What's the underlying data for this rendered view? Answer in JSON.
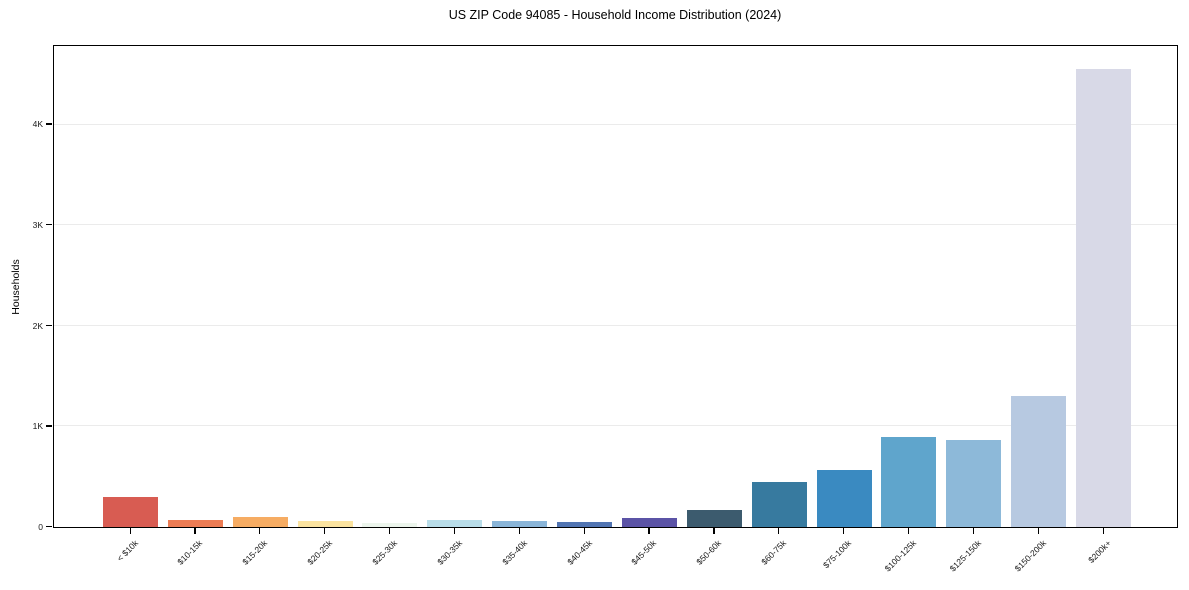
{
  "chart_data": {
    "type": "bar",
    "title": "US ZIP Code 94085 - Household Income Distribution (2024)",
    "xlabel": "",
    "ylabel": "Households",
    "ylim": [
      0,
      4780
    ],
    "grid": "horizontal-light",
    "legend": "none",
    "background": "#ffffff",
    "gridline_color": "#ebebeb",
    "spine_color": "#000000",
    "categories": [
      "< $10k",
      "$10-15k",
      "$15-20k",
      "$20-25k",
      "$25-30k",
      "$30-35k",
      "$35-40k",
      "$40-45k",
      "$45-50k",
      "$50-60k",
      "$60-75k",
      "$75-100k",
      "$100-125k",
      "$125-150k",
      "$150-200k",
      "$200k+"
    ],
    "values": [
      295,
      65,
      95,
      55,
      40,
      70,
      60,
      45,
      90,
      165,
      445,
      570,
      890,
      865,
      1300,
      4550
    ],
    "bar_colors": [
      "#d85c52",
      "#ec7c54",
      "#f6ac63",
      "#fbe3a0",
      "#ecf5ec",
      "#b9dde9",
      "#8ab5d8",
      "#5174b2",
      "#5b53a6",
      "#3c5b6e",
      "#377a9f",
      "#3a8ac1",
      "#5fa5cc",
      "#8db9d9",
      "#b7c9e1",
      "#d8d9e7"
    ],
    "yticks": [
      {
        "value": 0,
        "label": "0"
      },
      {
        "value": 1000,
        "label": "1K"
      },
      {
        "value": 2000,
        "label": "2K"
      },
      {
        "value": 3000,
        "label": "3K"
      },
      {
        "value": 4000,
        "label": "4K"
      }
    ]
  }
}
